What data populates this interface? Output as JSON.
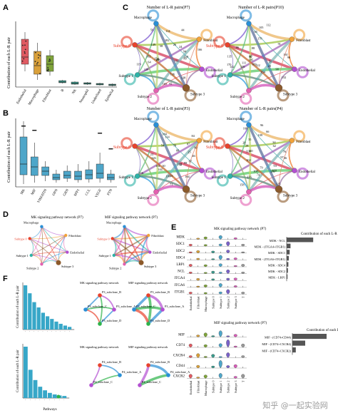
{
  "panels": {
    "A": {
      "label": "A",
      "ylabel": "Contribution of each L-R pair",
      "categories": [
        "Endothelial",
        "Macrophage",
        "Fibroblast",
        "B",
        "NK",
        "Neutrophil",
        "Underfined",
        "Epithelial"
      ],
      "colors": [
        "#e05a62",
        "#d9a03a",
        "#7ea33a",
        "#3a9a8c",
        "#3a9a8c",
        "#3a9a8c",
        "#3a9a8c",
        "#3a9a8c"
      ],
      "yticks": [
        "",
        "",
        ""
      ]
    },
    "B": {
      "label": "B",
      "ylabel": "Contribution of each L-R pair",
      "categories": [
        "MK",
        "MIF",
        "VISFATIN",
        "OPN",
        "GRN",
        "SPP1",
        "CCL",
        "VEGF",
        "PTN"
      ],
      "color": "#4ea6c9"
    },
    "C": {
      "label": "C",
      "circles": [
        {
          "title": "Number of L-R pairs(P7)"
        },
        {
          "title": "Number of L-R pairs(P10)"
        },
        {
          "title": "Number of L-R pairs(P3)"
        },
        {
          "title": "Number of L-R pairs(P4)"
        }
      ],
      "nodes": {
        "subtype0": "Subtype 0",
        "macrophage": "Macrophage",
        "fibroblast": "Fibroblast",
        "endothelial": "Endothelial",
        "subtype1": "Subtype 1",
        "subtype2": "Subtype 2",
        "subtype3": "Subtype 3"
      }
    },
    "D": {
      "label": "D",
      "titles": [
        "MK signaling pathway network (P7)",
        "MIF signaling pathway network (P7)"
      ]
    },
    "E": {
      "label": "E",
      "mk": {
        "title": "MK signaling pathway network (P7)",
        "genes": [
          "MDK",
          "SDC1",
          "SDC2",
          "SDC4",
          "LRP1",
          "NCL",
          "ITGA4",
          "ITGA6",
          "ITGB1"
        ],
        "cells": [
          "Endothelial",
          "Fibroblast",
          "Macrophage",
          "Subtype 0",
          "Subtype 1",
          "Subtype 2",
          "Subtype 3",
          "T"
        ],
        "bar_title": "Contribution of each L-R pair",
        "pairs": [
          "MDK - NCL",
          "MDK - (ITGA4+ITGB1)",
          "MDK - SDC1",
          "MDK - (ITGA6+ITGB1)",
          "MDK - SDC4",
          "MDK - SDC2",
          "MDK - LRP1"
        ],
        "values": [
          0.62,
          0.09,
          0.07,
          0.05,
          0.04,
          0.03,
          0.02
        ]
      },
      "mif": {
        "title": "MIF signaling pathway network (P7)",
        "genes": [
          "MIF",
          "CD74",
          "CXCR4",
          "CD44",
          "CXCR2"
        ],
        "cells": [
          "Endothelial",
          "Fibroblast",
          "Macrophage",
          "Subtype 0",
          "Subtype 1",
          "Subtype 2",
          "Subtype 3",
          "T"
        ],
        "bar_title": "Contribution of each L-R pair",
        "pairs": [
          "MIF - (CD74+CD44)",
          "MIF - (CD74+CXCR4)",
          "MIF - (CD74+CXCR2)"
        ],
        "values": [
          0.8,
          0.3,
          0.08
        ]
      }
    },
    "F": {
      "label": "F",
      "ylabel": "Contribution of each L-R pair",
      "xlabel": "Pathways",
      "nets": [
        {
          "title": "MK signaling pathway network",
          "labels": [
            "P3_subclone_B",
            "P3_subclone_C",
            "P3_subclone_A",
            "P3_subclone_D"
          ]
        },
        {
          "title": "MIF signaling pathway network",
          "labels": [
            "P3_subclone_B",
            "P3_subclone_C",
            "P3_subclone_A",
            "P3_subclone_D"
          ]
        },
        {
          "title": "MK signaling pathway network",
          "labels": [
            "P4_subclone_B",
            "P4_subclone_A",
            "P4_subclone_C"
          ]
        },
        {
          "title": "MIF signaling pathway network",
          "labels": [
            "P4_subclone_B",
            "P4_subclone_A",
            "P4_subclone_C"
          ]
        }
      ],
      "bars_top": [
        1.0,
        0.82,
        0.62,
        0.5,
        0.38,
        0.3,
        0.24,
        0.18,
        0.13,
        0.09,
        0.06
      ],
      "bars_bottom": [
        1.0,
        0.55,
        0.35,
        0.22,
        0.15,
        0.1,
        0.07,
        0.05,
        0.04
      ]
    }
  },
  "watermark": "知乎 @一起实验网"
}
